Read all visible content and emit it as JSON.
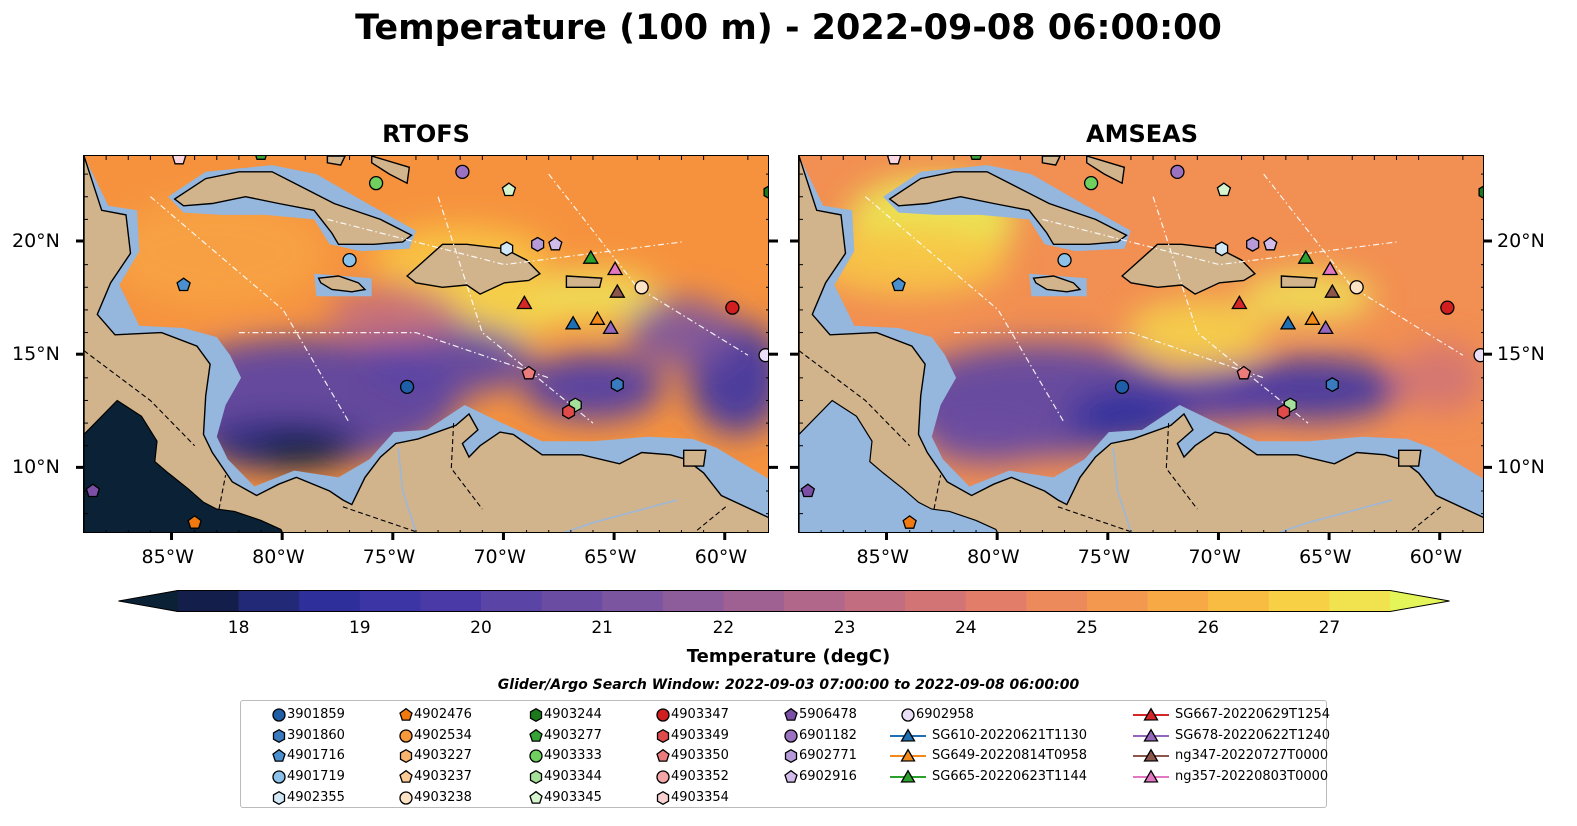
{
  "title": "Temperature (100 m) - 2022-09-08 06:00:00",
  "panels": [
    {
      "title": "RTOFS",
      "theme": "rtofs"
    },
    {
      "title": "AMSEAS",
      "theme": "amseas"
    }
  ],
  "lon_ticks": [
    "85°W",
    "80°W",
    "75°W",
    "70°W",
    "65°W",
    "60°W"
  ],
  "lat_ticks": [
    "20°N",
    "15°N",
    "10°N"
  ],
  "colorbar": {
    "title": "Temperature (degC)",
    "ticks": [
      "18",
      "19",
      "20",
      "21",
      "22",
      "23",
      "24",
      "25",
      "26",
      "27"
    ],
    "min": 17.5,
    "max": 27.5,
    "colors": [
      "#0b2236",
      "#141e4a",
      "#222a78",
      "#2f2f9c",
      "#3b35a6",
      "#4a3aa8",
      "#5a44a6",
      "#6a4ca3",
      "#7b559f",
      "#8d5c9a",
      "#9e6192",
      "#b0678a",
      "#c26d80",
      "#d27475",
      "#e17d68",
      "#ec8a5b",
      "#f3994f",
      "#f7a946",
      "#f9bc42",
      "#f7d045",
      "#f0e34f",
      "#e3f558"
    ]
  },
  "search_window": "Glider/Argo Search Window: 2022-09-03 07:00:00 to 2022-09-08 06:00:00",
  "legend": [
    {
      "label": "3901859",
      "shape": "circle",
      "color": "#1f5fa8"
    },
    {
      "label": "3901860",
      "shape": "hexagon",
      "color": "#3a7bc0"
    },
    {
      "label": "4901716",
      "shape": "pentagon",
      "color": "#4a90d0"
    },
    {
      "label": "4901719",
      "shape": "circle",
      "color": "#8cc2ea"
    },
    {
      "label": "4902355",
      "shape": "hexagon",
      "color": "#d2e8f7"
    },
    {
      "label": "4902476",
      "shape": "pentagon",
      "color": "#f07a10"
    },
    {
      "label": "4902534",
      "shape": "circle",
      "color": "#f7983a"
    },
    {
      "label": "4903227",
      "shape": "hexagon",
      "color": "#f9b56e"
    },
    {
      "label": "4903237",
      "shape": "pentagon",
      "color": "#fbca95"
    },
    {
      "label": "4903238",
      "shape": "circle",
      "color": "#fde3c6"
    },
    {
      "label": "4903244",
      "shape": "hexagon",
      "color": "#1c7a1c"
    },
    {
      "label": "4903277",
      "shape": "pentagon",
      "color": "#36a336"
    },
    {
      "label": "4903333",
      "shape": "circle",
      "color": "#6fcf5f"
    },
    {
      "label": "4903344",
      "shape": "hexagon",
      "color": "#a4e09a"
    },
    {
      "label": "4903345",
      "shape": "pentagon",
      "color": "#d6f4cd"
    },
    {
      "label": "4903347",
      "shape": "circle",
      "color": "#d11f1f"
    },
    {
      "label": "4903349",
      "shape": "hexagon",
      "color": "#e04a4a"
    },
    {
      "label": "4903350",
      "shape": "pentagon",
      "color": "#ec7c7c"
    },
    {
      "label": "4903352",
      "shape": "circle",
      "color": "#f4a5a5"
    },
    {
      "label": "4903354",
      "shape": "hexagon",
      "color": "#fad1d1"
    },
    {
      "label": "5906478",
      "shape": "pentagon",
      "color": "#7b4fa6"
    },
    {
      "label": "6901182",
      "shape": "circle",
      "color": "#9b72c2"
    },
    {
      "label": "6902771",
      "shape": "hexagon",
      "color": "#b79bd8"
    },
    {
      "label": "6902916",
      "shape": "pentagon",
      "color": "#d2bdea"
    },
    {
      "label": "6902958",
      "shape": "circle",
      "color": "#eadff6"
    },
    {
      "label": "SG610-20220621T1130",
      "shape": "triangle",
      "color": "#1f6fb5"
    },
    {
      "label": "SG649-20220814T0958",
      "shape": "triangle",
      "color": "#f28a1a"
    },
    {
      "label": "SG665-20220623T1144",
      "shape": "triangle",
      "color": "#2ca02c"
    },
    {
      "label": "SG667-20220629T1254",
      "shape": "triangle",
      "color": "#d62728"
    },
    {
      "label": "SG678-20220622T1240",
      "shape": "triangle",
      "color": "#9467bd"
    },
    {
      "label": "ng347-20220727T0000",
      "shape": "triangle",
      "color": "#8c564b"
    },
    {
      "label": "ng357-20220803T0000",
      "shape": "triangle",
      "color": "#e377c2"
    }
  ],
  "map_markers": [
    {
      "shape": "circle",
      "color": "#1f5fa8",
      "lon": -74.4,
      "lat": 13.6
    },
    {
      "shape": "hexagon",
      "color": "#3a7bc0",
      "lon": -64.9,
      "lat": 13.7
    },
    {
      "shape": "pentagon",
      "color": "#4a90d0",
      "lon": -84.5,
      "lat": 18.1
    },
    {
      "shape": "circle",
      "color": "#8cc2ea",
      "lon": -77.0,
      "lat": 19.2
    },
    {
      "shape": "hexagon",
      "color": "#d2e8f7",
      "lon": -69.9,
      "lat": 19.7
    },
    {
      "shape": "pentagon",
      "color": "#f07a10",
      "lon": -84.0,
      "lat": 7.6
    },
    {
      "shape": "circle",
      "color": "#fde3c6",
      "lon": -63.8,
      "lat": 18.0
    },
    {
      "shape": "hexagon",
      "color": "#1c7a1c",
      "lon": -58.0,
      "lat": 22.2
    },
    {
      "shape": "pentagon",
      "color": "#36a336",
      "lon": -81.0,
      "lat": 23.9
    },
    {
      "shape": "circle",
      "color": "#6fcf5f",
      "lon": -75.8,
      "lat": 22.6
    },
    {
      "shape": "hexagon",
      "color": "#a4e09a",
      "lon": -66.8,
      "lat": 12.8
    },
    {
      "shape": "pentagon",
      "color": "#d6f4cd",
      "lon": -69.8,
      "lat": 22.3
    },
    {
      "shape": "circle",
      "color": "#d11f1f",
      "lon": -59.7,
      "lat": 17.1
    },
    {
      "shape": "hexagon",
      "color": "#e04a4a",
      "lon": -67.1,
      "lat": 12.5
    },
    {
      "shape": "pentagon",
      "color": "#ec7c7c",
      "lon": -68.9,
      "lat": 14.2
    },
    {
      "shape": "pentagon",
      "color": "#7b4fa6",
      "lon": -88.6,
      "lat": 9.0
    },
    {
      "shape": "circle",
      "color": "#9b72c2",
      "lon": -71.9,
      "lat": 23.1
    },
    {
      "shape": "hexagon",
      "color": "#b79bd8",
      "lon": -68.5,
      "lat": 19.9
    },
    {
      "shape": "pentagon",
      "color": "#d2bdea",
      "lon": -67.7,
      "lat": 19.9
    },
    {
      "shape": "circle",
      "color": "#eadff6",
      "lon": -58.2,
      "lat": 15.0
    },
    {
      "shape": "pentagon",
      "color": "#f9d6e0",
      "lon": -84.7,
      "lat": 23.7
    },
    {
      "shape": "triangle",
      "color": "#1f6fb5",
      "lon": -66.9,
      "lat": 16.4
    },
    {
      "shape": "triangle",
      "color": "#f28a1a",
      "lon": -65.8,
      "lat": 16.6
    },
    {
      "shape": "triangle",
      "color": "#2ca02c",
      "lon": -66.1,
      "lat": 19.3
    },
    {
      "shape": "triangle",
      "color": "#d62728",
      "lon": -69.1,
      "lat": 17.3
    },
    {
      "shape": "triangle",
      "color": "#9467bd",
      "lon": -65.2,
      "lat": 16.2
    },
    {
      "shape": "triangle",
      "color": "#8c564b",
      "lon": -64.9,
      "lat": 17.8
    },
    {
      "shape": "triangle",
      "color": "#e377c2",
      "lon": -65.0,
      "lat": 18.8
    }
  ]
}
